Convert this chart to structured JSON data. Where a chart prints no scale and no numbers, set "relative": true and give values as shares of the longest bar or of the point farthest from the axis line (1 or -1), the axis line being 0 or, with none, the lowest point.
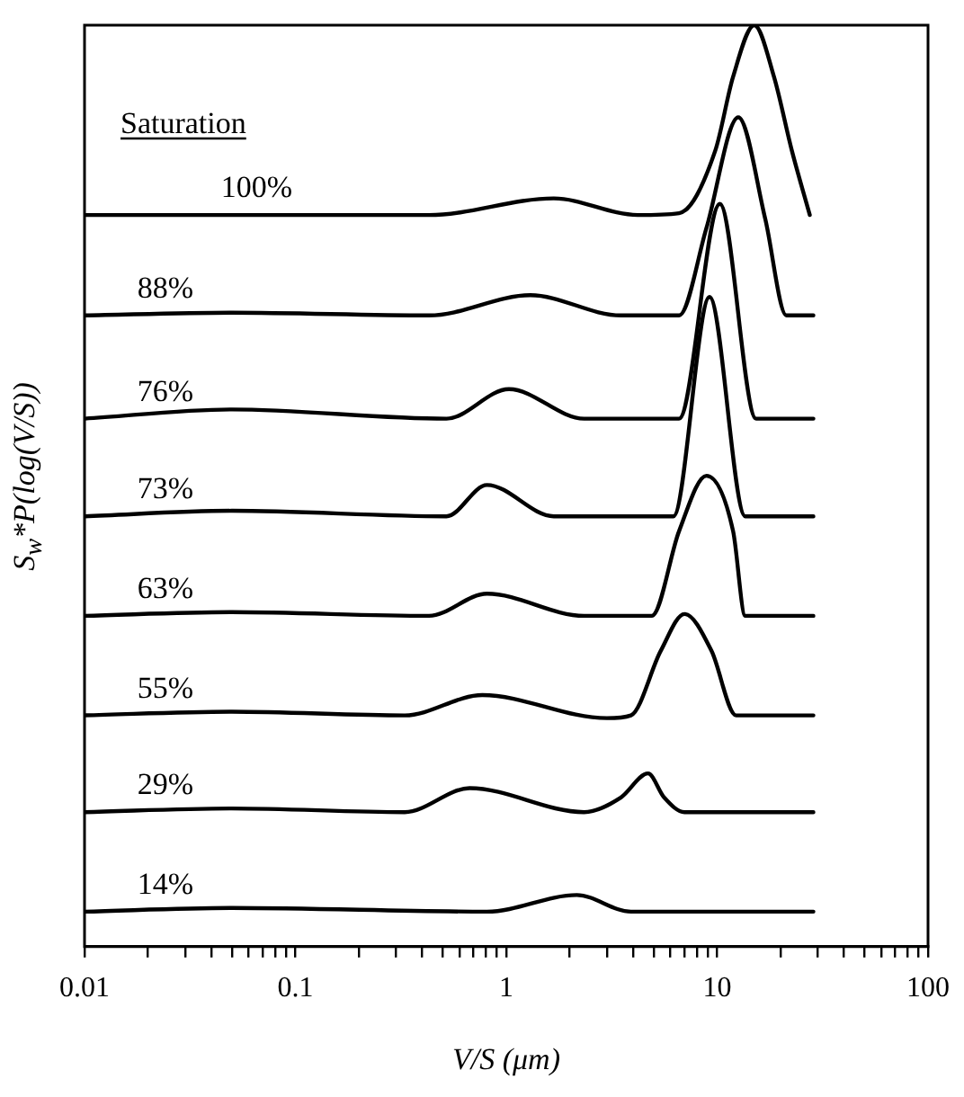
{
  "chart_data": {
    "type": "line",
    "xlabel": "V/S (μm)",
    "ylabel": "S$_{w}$*P(log(V/S))",
    "legend_title": "Saturation",
    "relative": true,
    "log": "x",
    "grid": false,
    "legend": false,
    "marker": "none",
    "line_style": "solid",
    "xlim": [
      0.01,
      100
    ],
    "xticks": [
      0.01,
      {
        "value": 0.02,
        "label": null
      },
      {
        "value": 0.03,
        "label": null
      },
      {
        "value": 0.04,
        "label": null
      },
      {
        "value": 0.05,
        "label": null
      },
      {
        "value": 0.06,
        "label": null
      },
      {
        "value": 0.07,
        "label": null
      },
      {
        "value": 0.08,
        "label": null
      },
      {
        "value": 0.09,
        "label": null
      },
      0.1,
      {
        "value": 0.2,
        "label": null
      },
      {
        "value": 0.3,
        "label": null
      },
      {
        "value": 0.4,
        "label": null
      },
      {
        "value": 0.5,
        "label": null
      },
      {
        "value": 0.6,
        "label": null
      },
      {
        "value": 0.7,
        "label": null
      },
      {
        "value": 0.8,
        "label": null
      },
      {
        "value": 0.9,
        "label": null
      },
      1,
      {
        "value": 2,
        "label": null
      },
      {
        "value": 3,
        "label": null
      },
      {
        "value": 4,
        "label": null
      },
      {
        "value": 5,
        "label": null
      },
      {
        "value": 6,
        "label": null
      },
      {
        "value": 7,
        "label": null
      },
      {
        "value": 8,
        "label": null
      },
      {
        "value": 9,
        "label": null
      },
      10,
      {
        "value": 20,
        "label": null
      },
      {
        "value": 30,
        "label": null
      },
      {
        "value": 40,
        "label": null
      },
      {
        "value": 50,
        "label": null
      },
      {
        "value": 60,
        "label": null
      },
      {
        "value": 70,
        "label": null
      },
      {
        "value": 80,
        "label": null
      },
      {
        "value": 90,
        "label": null
      },
      100
    ],
    "series": [
      {
        "name": "100%",
        "color": "#000000",
        "x": [
          0.01,
          0.43,
          1.68,
          4.2,
          6.6,
          9.8,
          11.9,
          15,
          18.6,
          22.6,
          27.5
        ],
        "values": [
          0.794,
          0.794,
          0.812,
          0.794,
          0.796,
          0.864,
          0.944,
          1,
          0.944,
          0.864,
          0.794
        ]
      },
      {
        "name": "88%",
        "color": "#000000",
        "x": [
          0.01,
          0.05,
          0.43,
          1.3,
          3.5,
          6.6,
          8.9,
          12.6,
          16.9,
          21.3,
          28.6
        ],
        "values": [
          0.685,
          0.688,
          0.685,
          0.707,
          0.685,
          0.685,
          0.78,
          0.9,
          0.79,
          0.685,
          0.685
        ]
      },
      {
        "name": "76%",
        "color": "#000000",
        "x": [
          0.01,
          0.05,
          0.52,
          1.03,
          2.34,
          6.6,
          10.3,
          15.3,
          28.6
        ],
        "values": [
          0.573,
          0.583,
          0.573,
          0.605,
          0.573,
          0.573,
          0.806,
          0.573,
          0.573
        ]
      },
      {
        "name": "73%",
        "color": "#000000",
        "x": [
          0.01,
          0.05,
          0.52,
          0.81,
          1.68,
          6.2,
          9.2,
          13.6,
          28.6
        ],
        "values": [
          0.467,
          0.473,
          0.467,
          0.501,
          0.467,
          0.467,
          0.705,
          0.467,
          0.467
        ]
      },
      {
        "name": "63%",
        "color": "#000000",
        "x": [
          0.01,
          0.05,
          0.43,
          0.81,
          2.34,
          4.9,
          6.6,
          8.9,
          11.9,
          13.6,
          28.6
        ],
        "values": [
          0.359,
          0.363,
          0.359,
          0.383,
          0.359,
          0.359,
          0.451,
          0.511,
          0.451,
          0.359,
          0.359
        ]
      },
      {
        "name": "55%",
        "color": "#000000",
        "x": [
          0.01,
          0.05,
          0.33,
          0.77,
          3.0,
          3.9,
          5.4,
          7.0,
          9.4,
          12.3,
          28.6
        ],
        "values": [
          0.251,
          0.255,
          0.251,
          0.273,
          0.248,
          0.251,
          0.321,
          0.361,
          0.321,
          0.251,
          0.251
        ]
      },
      {
        "name": "29%",
        "color": "#000000",
        "x": [
          0.01,
          0.05,
          0.33,
          0.67,
          2.34,
          3.5,
          4.7,
          5.6,
          7.0,
          28.6
        ],
        "values": [
          0.146,
          0.15,
          0.146,
          0.172,
          0.146,
          0.162,
          0.188,
          0.162,
          0.146,
          0.146
        ]
      },
      {
        "name": "14%",
        "color": "#000000",
        "x": [
          0.01,
          0.05,
          0.81,
          2.16,
          3.9,
          28.6
        ],
        "values": [
          0.038,
          0.042,
          0.038,
          0.056,
          0.038,
          0.038
        ]
      }
    ]
  }
}
